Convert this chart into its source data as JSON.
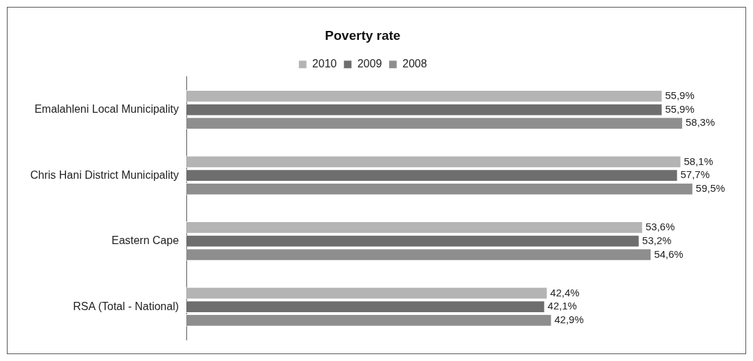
{
  "chart_data": {
    "type": "bar",
    "orientation": "horizontal",
    "title": "Poverty rate",
    "legend": "top",
    "categories": [
      "Emalahleni Local Municipality",
      "Chris Hani District Municipality",
      "Eastern Cape",
      "RSA (Total - National)"
    ],
    "series": [
      {
        "name": "2010",
        "color": "#b4b4b4",
        "values": [
          55.9,
          58.1,
          53.6,
          42.4
        ],
        "value_labels": [
          "55,9%",
          "58,1%",
          "53,6%",
          "42,4%"
        ]
      },
      {
        "name": "2009",
        "color": "#6e6e6e",
        "values": [
          55.9,
          57.7,
          53.2,
          42.1
        ],
        "value_labels": [
          "55,9%",
          "57,7%",
          "53,2%",
          "42,1%"
        ]
      },
      {
        "name": "2008",
        "color": "#8e8e8e",
        "values": [
          58.3,
          59.5,
          54.6,
          42.9
        ],
        "value_labels": [
          "58,3%",
          "59,5%",
          "54,6%",
          "42,9%"
        ]
      }
    ]
  }
}
